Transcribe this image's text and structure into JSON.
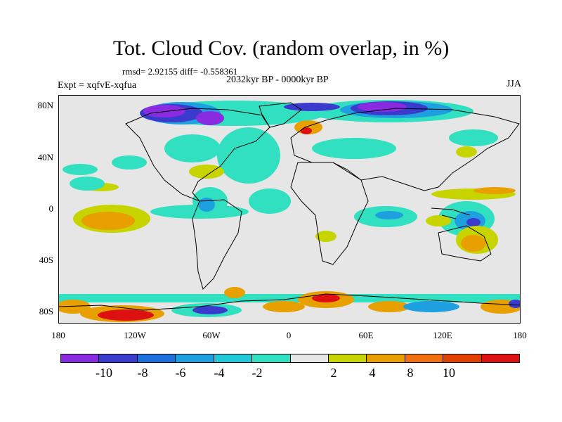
{
  "header": {
    "title": "Tot. Cloud Cov. (random overlap, in %)",
    "stats": "rmsd= 2.92155 diff= -0.558361",
    "period": "2032kyr BP - 0000kyr BP",
    "experiment": "Expt = xqfvE-xqfua",
    "season": "JJA"
  },
  "map": {
    "background_color": "#e6e6e6",
    "y_ticks": [
      "80N",
      "40N",
      "0",
      "40S",
      "80S"
    ],
    "x_ticks": [
      "180",
      "120W",
      "60W",
      "0",
      "60E",
      "120E",
      "180"
    ]
  },
  "colorbar": {
    "colors": [
      "#8a2be2",
      "#3a3acd",
      "#1e6fd9",
      "#1ea0e0",
      "#20c8d8",
      "#30e0c0",
      "#e6e6e6",
      "#c8d400",
      "#e8a000",
      "#f07010",
      "#e04000",
      "#dd1111"
    ],
    "labels": [
      "-10",
      "-8",
      "-6",
      "-4",
      "-2",
      "2",
      "4",
      "8",
      "10"
    ]
  }
}
